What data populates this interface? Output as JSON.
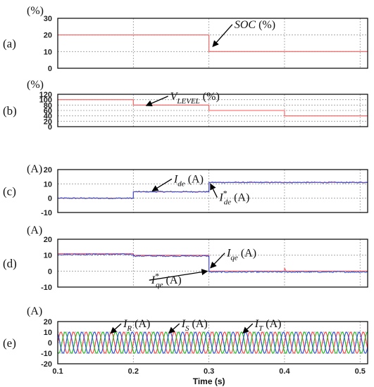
{
  "chart_data": {
    "type": "line",
    "xlabel": "Time (s)",
    "xlim": [
      0.1,
      0.51
    ],
    "xticks": [
      "0.1",
      "0.2",
      "0.3",
      "0.4",
      "0.5"
    ],
    "xtick_values": [
      0.1,
      0.2,
      0.3,
      0.4,
      0.5
    ],
    "grid": true,
    "panels": [
      {
        "label": "(a)",
        "unit": "(%)",
        "ylim": [
          0,
          30
        ],
        "yticks": [
          0,
          10,
          20,
          30
        ],
        "series": [
          {
            "color": "#ff5a5a",
            "points": [
              [
                0.1,
                20
              ],
              [
                0.3,
                20
              ],
              [
                0.3,
                10
              ],
              [
                0.51,
                10
              ]
            ]
          }
        ],
        "annotations": [
          {
            "text": "SOC",
            "suffix": " (%)",
            "x": 0.305,
            "y": 13,
            "tx": 0.33,
            "ty": 25
          }
        ]
      },
      {
        "label": "(b)",
        "unit": "(%)",
        "ylim": [
          0,
          120
        ],
        "yticks": [
          0,
          20,
          40,
          60,
          80,
          100,
          120
        ],
        "series": [
          {
            "color": "#ff5a5a",
            "points": [
              [
                0.1,
                100
              ],
              [
                0.2,
                100
              ],
              [
                0.2,
                80
              ],
              [
                0.3,
                80
              ],
              [
                0.3,
                60
              ],
              [
                0.4,
                60
              ],
              [
                0.4,
                40
              ],
              [
                0.51,
                40
              ]
            ]
          }
        ],
        "annotations": [
          {
            "text": "V",
            "sub": "LEVEL",
            "suffix": " (%)",
            "x": 0.217,
            "y": 78,
            "tx": 0.245,
            "ty": 105
          }
        ]
      },
      {
        "label": "(c)",
        "unit": "(A)",
        "ylim": [
          -10,
          20
        ],
        "yticks": [
          -10,
          0,
          10,
          20
        ],
        "series": [
          {
            "color": "#ff5a5a",
            "points": [
              [
                0.1,
                0
              ],
              [
                0.2,
                0
              ],
              [
                0.2,
                4.5
              ],
              [
                0.3,
                4.5
              ],
              [
                0.3,
                11
              ],
              [
                0.51,
                11
              ]
            ]
          },
          {
            "color": "#3050d8",
            "noise": 0.4,
            "points": [
              [
                0.1,
                0
              ],
              [
                0.2,
                0
              ],
              [
                0.2,
                4.5
              ],
              [
                0.3,
                4.5
              ],
              [
                0.3,
                11
              ],
              [
                0.51,
                11
              ]
            ]
          }
        ],
        "annotations": [
          {
            "text": "I",
            "sub": "de",
            "suffix": " (A)",
            "x": 0.225,
            "y": 5,
            "tx": 0.25,
            "ty": 12
          },
          {
            "text": "I",
            "sup": "*",
            "sub": "de",
            "suffix": " (A)",
            "x": 0.302,
            "y": 10,
            "tx": 0.31,
            "ty": -1
          }
        ]
      },
      {
        "label": "(d)",
        "unit": "(A)",
        "ylim": [
          -10,
          20
        ],
        "yticks": [
          -10,
          0,
          10,
          20
        ],
        "series": [
          {
            "color": "#ff5a5a",
            "points": [
              [
                0.1,
                11
              ],
              [
                0.2,
                11
              ],
              [
                0.2,
                10
              ],
              [
                0.3,
                10
              ],
              [
                0.3,
                0
              ],
              [
                0.4,
                0
              ],
              [
                0.4,
                2
              ],
              [
                0.402,
                0
              ],
              [
                0.51,
                0
              ]
            ]
          },
          {
            "color": "#3050d8",
            "noise": 0.4,
            "points": [
              [
                0.1,
                10.5
              ],
              [
                0.2,
                10.5
              ],
              [
                0.2,
                9.5
              ],
              [
                0.3,
                9.5
              ],
              [
                0.3,
                -0.5
              ],
              [
                0.51,
                -0.5
              ]
            ]
          }
        ],
        "annotations": [
          {
            "text": "I",
            "sub": "qe",
            "suffix": " (A)",
            "x": 0.302,
            "y": 2,
            "tx": 0.32,
            "ty": 10
          },
          {
            "text": "I",
            "sup": "*",
            "sub": "qe",
            "suffix": " (A)",
            "x": 0.298,
            "y": 0,
            "tx": 0.22,
            "ty": -7
          }
        ]
      },
      {
        "label": "(e)",
        "unit": "(A)",
        "ylim": [
          -20,
          20
        ],
        "yticks": [
          -20,
          -10,
          0,
          10,
          20
        ],
        "sinusoids": {
          "amplitude": 10,
          "frequency": 60,
          "phases_deg": [
            0,
            -120,
            120
          ],
          "colors": [
            "#ff4444",
            "#22bb22",
            "#3050d8"
          ]
        },
        "annotations": [
          {
            "text": "I",
            "sub": "R",
            "suffix": " (A)",
            "x": 0.17,
            "y": 9,
            "tx": 0.183,
            "ty": 16
          },
          {
            "text": "I",
            "sub": "S",
            "suffix": " (A)",
            "x": 0.247,
            "y": 9,
            "tx": 0.26,
            "ty": 16
          },
          {
            "text": "I",
            "sub": "T",
            "suffix": " (A)",
            "x": 0.345,
            "y": 9,
            "tx": 0.357,
            "ty": 16
          }
        ]
      }
    ]
  }
}
